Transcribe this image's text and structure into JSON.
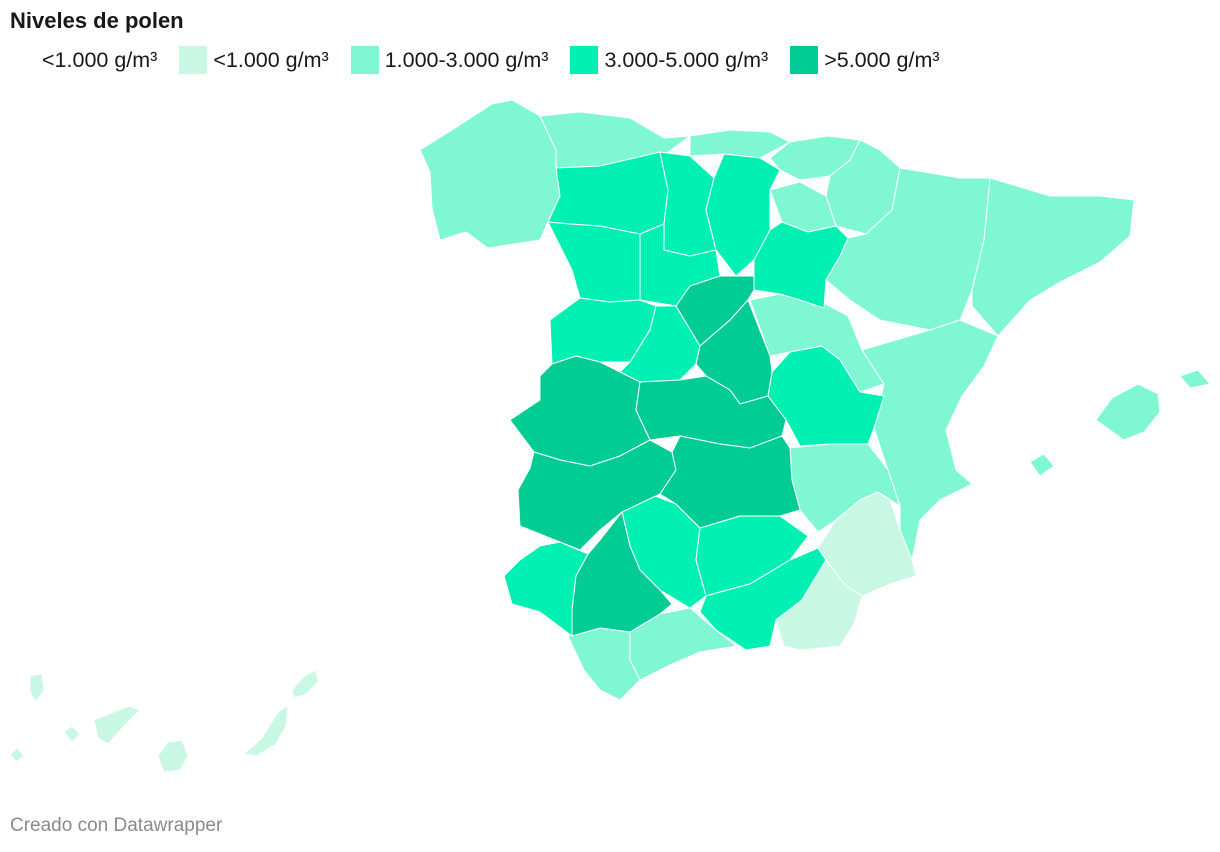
{
  "title": "Niveles de polen",
  "legend": [
    {
      "label": "<1.000 g/m³",
      "color": ""
    },
    {
      "label": "<1.000 g/m³",
      "color": "#c8f7e3"
    },
    {
      "label": "1.000-3.000 g/m³",
      "color": "#7ff7d2"
    },
    {
      "label": "3.000-5.000 g/m³",
      "color": "#00f0b4"
    },
    {
      "label": ">5.000 g/m³",
      "color": "#00cc93"
    }
  ],
  "footer": "Creado con Datawrapper",
  "regions": {
    "lt1000": [
      "Murcia",
      "Almería",
      "Canarias"
    ],
    "1000_3000": [
      "Galicia",
      "Asturias",
      "Cantabria",
      "País Vasco",
      "Navarra",
      "La Rioja",
      "Aragón",
      "Cataluña",
      "Comunidad Valenciana",
      "Cuenca",
      "Albacete",
      "Islas Baleares",
      "Cádiz",
      "Málaga"
    ],
    "3000_5000": [
      "León",
      "Palencia",
      "Burgos",
      "Soria",
      "Zamora",
      "Valladolid",
      "Salamanca",
      "Ávila",
      "Guadalajara",
      "Huelva",
      "Córdoba",
      "Jaén",
      "Granada"
    ],
    "gt5000": [
      "Segovia",
      "Madrid",
      "Cáceres",
      "Toledo",
      "Badajoz",
      "Ciudad Real",
      "Sevilla"
    ]
  }
}
